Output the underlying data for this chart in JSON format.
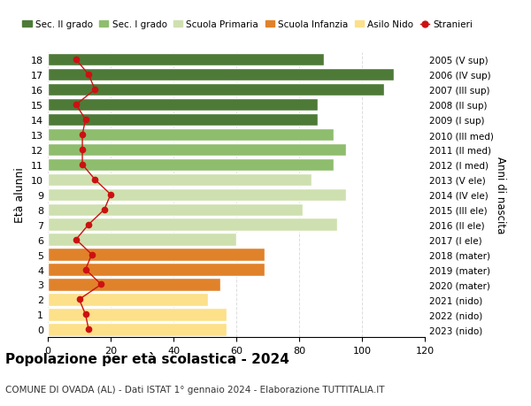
{
  "ages": [
    0,
    1,
    2,
    3,
    4,
    5,
    6,
    7,
    8,
    9,
    10,
    11,
    12,
    13,
    14,
    15,
    16,
    17,
    18
  ],
  "bar_values": [
    57,
    57,
    51,
    55,
    69,
    69,
    60,
    92,
    81,
    95,
    84,
    91,
    95,
    91,
    86,
    86,
    107,
    110,
    88
  ],
  "bar_colors": [
    "#fce08a",
    "#fce08a",
    "#fce08a",
    "#e0822a",
    "#e0822a",
    "#e0822a",
    "#cfe0b0",
    "#cfe0b0",
    "#cfe0b0",
    "#cfe0b0",
    "#cfe0b0",
    "#8fbd6e",
    "#8fbd6e",
    "#8fbd6e",
    "#4e7a38",
    "#4e7a38",
    "#4e7a38",
    "#4e7a38",
    "#4e7a38"
  ],
  "stranieri_values": [
    13,
    12,
    10,
    17,
    12,
    14,
    9,
    13,
    18,
    20,
    15,
    11,
    11,
    11,
    12,
    9,
    15,
    13,
    9
  ],
  "right_labels": [
    "2023 (nido)",
    "2022 (nido)",
    "2021 (nido)",
    "2020 (mater)",
    "2019 (mater)",
    "2018 (mater)",
    "2017 (I ele)",
    "2016 (II ele)",
    "2015 (III ele)",
    "2014 (IV ele)",
    "2013 (V ele)",
    "2012 (I med)",
    "2011 (II med)",
    "2010 (III med)",
    "2009 (I sup)",
    "2008 (II sup)",
    "2007 (III sup)",
    "2006 (IV sup)",
    "2005 (V sup)"
  ],
  "legend_labels": [
    "Sec. II grado",
    "Sec. I grado",
    "Scuola Primaria",
    "Scuola Infanzia",
    "Asilo Nido",
    "Stranieri"
  ],
  "legend_colors": [
    "#4e7a38",
    "#8fbd6e",
    "#cfe0b0",
    "#e0822a",
    "#fce08a",
    "#cc1111"
  ],
  "ylabel": "Età alunni",
  "right_ylabel": "Anni di nascita",
  "title": "Popolazione per età scolastica - 2024",
  "subtitle": "COMUNE DI OVADA (AL) - Dati ISTAT 1° gennaio 2024 - Elaborazione TUTTITALIA.IT",
  "xlim": [
    0,
    120
  ],
  "xticks": [
    0,
    20,
    40,
    60,
    80,
    100,
    120
  ],
  "background_color": "#ffffff",
  "grid_color": "#dddddd"
}
